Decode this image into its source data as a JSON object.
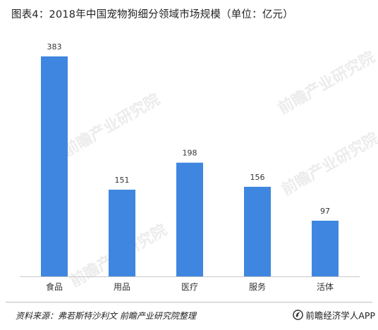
{
  "title": "图表4：2018年中国宠物狗细分领域市场规模（单位：亿元）",
  "colors": {
    "bar": "#3f86e0",
    "axis": "#c8c8c8",
    "label": "#333333"
  },
  "chart_data": {
    "type": "bar",
    "title": "图表4：2018年中国宠物狗细分领域市场规模（单位：亿元）",
    "categories": [
      "食品",
      "用品",
      "医疗",
      "服务",
      "活体"
    ],
    "values": [
      383,
      151,
      198,
      156,
      97
    ],
    "xlabel": "",
    "ylabel": "",
    "ylim": [
      0,
      383
    ],
    "grid": false,
    "legend": "none",
    "data_labels": [
      "383",
      "151",
      "198",
      "156",
      "97"
    ]
  },
  "watermark": {
    "text": "前瞻产业研究院"
  },
  "footer": {
    "source": "资料来源：弗若斯特沙利文  前瞻产业研究院整理",
    "brand": "前瞻经济学人APP",
    "brand_icon": "qianzhan-logo-icon"
  }
}
